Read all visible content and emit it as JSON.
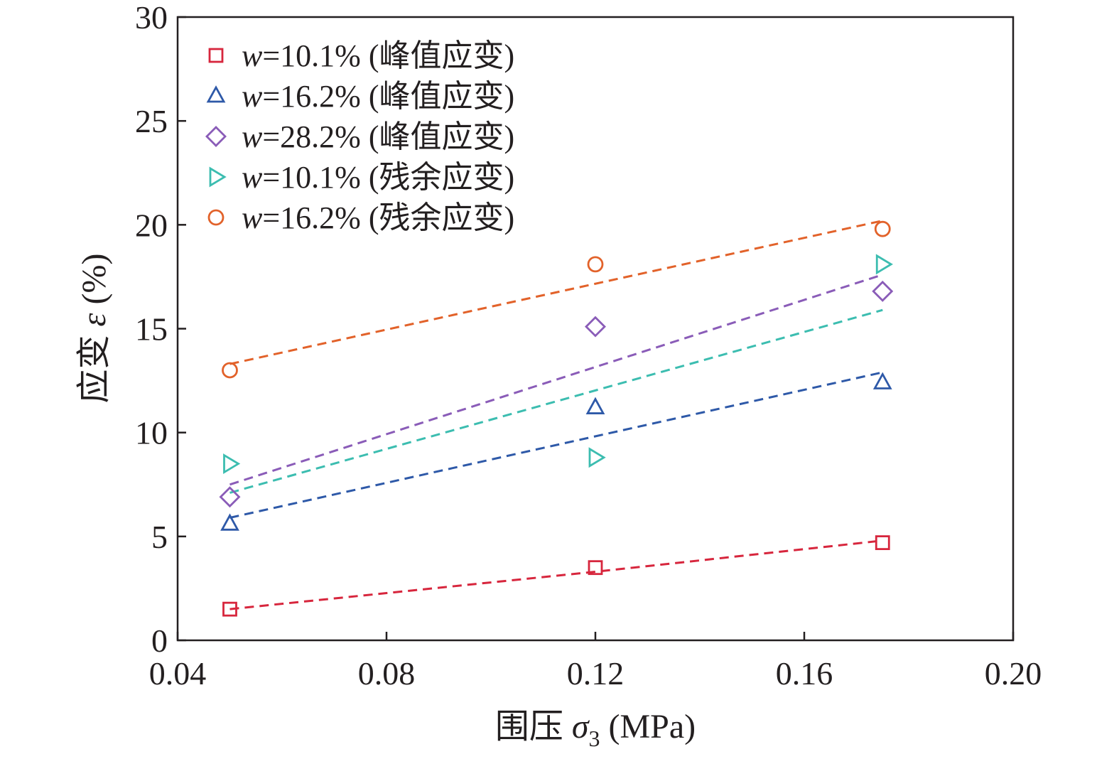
{
  "chart_data": {
    "type": "scatter",
    "title": "",
    "xlabel": "围压 σ₃ (MPa)",
    "ylabel": "应变 ε (%)",
    "xlim": [
      0.04,
      0.2
    ],
    "ylim": [
      0,
      30
    ],
    "xticks": [
      0.04,
      0.08,
      0.12,
      0.16,
      0.2
    ],
    "xtick_labels": [
      "0.04",
      "0.08",
      "0.12",
      "0.16",
      "0.20"
    ],
    "yticks": [
      0,
      5,
      10,
      15,
      20,
      25,
      30
    ],
    "ytick_labels": [
      "0",
      "5",
      "10",
      "15",
      "20",
      "25",
      "30"
    ],
    "grid": false,
    "legend_position": "top-left",
    "series": [
      {
        "name": "w=10.1% (峰值应变)",
        "w": "w",
        "label_rest": "=10.1% (峰值应变)",
        "marker": "square",
        "color": "#d7263d",
        "x": [
          0.05,
          0.12,
          0.175
        ],
        "y": [
          1.5,
          3.5,
          4.7
        ],
        "fit": {
          "x": [
            0.05,
            0.12,
            0.175
          ],
          "y": [
            1.5,
            3.3,
            4.8
          ]
        }
      },
      {
        "name": "w=16.2% (峰值应变)",
        "w": "w",
        "label_rest": "=16.2% (峰值应变)",
        "marker": "triangle-up",
        "color": "#2e59a8",
        "x": [
          0.05,
          0.12,
          0.175
        ],
        "y": [
          5.6,
          11.2,
          12.4
        ],
        "fit": {
          "x": [
            0.05,
            0.175
          ],
          "y": [
            5.9,
            12.9
          ]
        }
      },
      {
        "name": "w=28.2% (峰值应变)",
        "w": "w",
        "label_rest": "=28.2% (峰值应变)",
        "marker": "diamond",
        "color": "#8a5cb8",
        "x": [
          0.05,
          0.12,
          0.175
        ],
        "y": [
          6.9,
          15.1,
          16.8
        ],
        "fit": {
          "x": [
            0.05,
            0.175
          ],
          "y": [
            7.5,
            17.6
          ]
        }
      },
      {
        "name": "w=10.1% (残余应变)",
        "w": "w",
        "label_rest": "=10.1% (残余应变)",
        "marker": "triangle-right",
        "color": "#3cbdb0",
        "x": [
          0.05,
          0.12,
          0.175
        ],
        "y": [
          8.5,
          8.8,
          18.1
        ],
        "fit": {
          "x": [
            0.05,
            0.175
          ],
          "y": [
            7.1,
            15.9
          ]
        }
      },
      {
        "name": "w=16.2% (残余应变)",
        "w": "w",
        "label_rest": "=16.2% (残余应变)",
        "marker": "circle",
        "color": "#e2622a",
        "x": [
          0.05,
          0.12,
          0.175
        ],
        "y": [
          13.0,
          18.1,
          19.8
        ],
        "fit": {
          "x": [
            0.05,
            0.175
          ],
          "y": [
            13.3,
            20.2
          ]
        }
      }
    ]
  },
  "axes": {
    "x_title_prefix": "围压 ",
    "x_title_symbol": "σ",
    "x_title_subscript": "3",
    "x_title_suffix": " (MPa)",
    "y_title_prefix": "应变 ",
    "y_title_symbol": "ε",
    "y_title_suffix": " (%)"
  }
}
